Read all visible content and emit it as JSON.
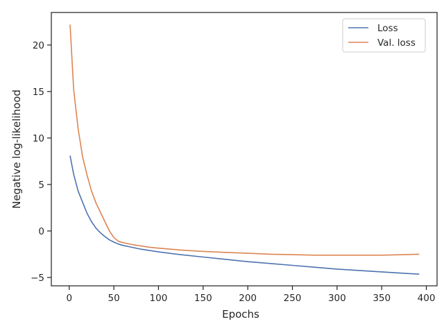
{
  "chart_data": {
    "type": "line",
    "title": "",
    "xlabel": "Epochs",
    "ylabel": "Negative log-likelihood",
    "xlim": [
      -20,
      412
    ],
    "ylim": [
      -5.9,
      23.5
    ],
    "xticks": [
      0,
      50,
      100,
      150,
      200,
      250,
      300,
      350,
      400
    ],
    "yticks": [
      -5,
      0,
      5,
      10,
      15,
      20
    ],
    "xtick_labels": [
      "0",
      "50",
      "100",
      "150",
      "200",
      "250",
      "300",
      "350",
      "400"
    ],
    "ytick_labels": [
      "−5",
      "0",
      "5",
      "10",
      "15",
      "20"
    ],
    "grid": false,
    "legend_position": "top-right",
    "series": [
      {
        "name": "Loss",
        "color": "#4c72b0",
        "x": [
          1,
          5,
          10,
          15,
          20,
          25,
          30,
          35,
          40,
          45,
          50,
          55,
          60,
          70,
          80,
          90,
          100,
          125,
          150,
          175,
          200,
          225,
          250,
          275,
          300,
          325,
          350,
          375,
          392
        ],
        "y": [
          8.1,
          6.1,
          4.3,
          3.1,
          1.9,
          1.0,
          0.3,
          -0.2,
          -0.6,
          -0.95,
          -1.2,
          -1.4,
          -1.55,
          -1.75,
          -1.95,
          -2.1,
          -2.25,
          -2.55,
          -2.8,
          -3.05,
          -3.3,
          -3.5,
          -3.7,
          -3.9,
          -4.1,
          -4.25,
          -4.4,
          -4.55,
          -4.65
        ]
      },
      {
        "name": "Val. loss",
        "color": "#dd8452",
        "x": [
          1,
          5,
          10,
          15,
          20,
          25,
          30,
          35,
          40,
          45,
          50,
          55,
          60,
          70,
          80,
          90,
          100,
          125,
          150,
          175,
          200,
          225,
          250,
          275,
          300,
          325,
          350,
          375,
          392
        ],
        "y": [
          22.2,
          15.2,
          11.0,
          8.0,
          6.0,
          4.3,
          3.0,
          2.0,
          1.0,
          0.0,
          -0.7,
          -1.1,
          -1.25,
          -1.45,
          -1.6,
          -1.75,
          -1.85,
          -2.05,
          -2.2,
          -2.3,
          -2.4,
          -2.5,
          -2.55,
          -2.6,
          -2.6,
          -2.6,
          -2.6,
          -2.55,
          -2.5
        ]
      }
    ]
  }
}
